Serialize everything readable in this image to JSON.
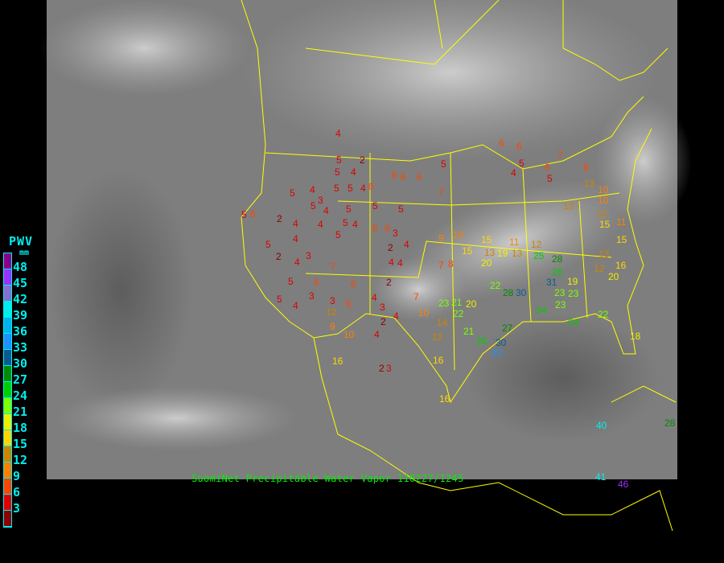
{
  "legend": {
    "title": "PWV",
    "unit": "mm",
    "labels": [
      "48",
      "45",
      "42",
      "39",
      "36",
      "33",
      "30",
      "27",
      "24",
      "21",
      "18",
      "15",
      "12",
      "9",
      "6",
      "3"
    ],
    "colors": [
      "#8b008b",
      "#9b30ff",
      "#8470d0",
      "#00eeee",
      "#00b2ee",
      "#1e90ff",
      "#0b5a8f",
      "#008b00",
      "#00cd00",
      "#7fff00",
      "#eeee00",
      "#ffd700",
      "#cd8500",
      "#ff8000",
      "#ff4500",
      "#dd0000",
      "#8b0000"
    ]
  },
  "caption": "SuomiNet Precipitable Water Vapor 110227/1245",
  "map_colors": {
    "borders": "#ffff00",
    "background": "#000000"
  },
  "stations": [
    "4",
    "5",
    "2",
    "5",
    "4",
    "6",
    "6",
    "6",
    "7",
    "5",
    "4",
    "5",
    "5",
    "4",
    "6",
    "2",
    "5",
    "5",
    "4",
    "5",
    "5",
    "6",
    "5",
    "5",
    "4",
    "3",
    "4",
    "5",
    "5",
    "4",
    "6",
    "3",
    "2",
    "4",
    "4",
    "4",
    "5",
    "4",
    "2",
    "3",
    "3",
    "4",
    "2",
    "5",
    "5",
    "6",
    "7",
    "6",
    "4",
    "3",
    "2",
    "2",
    "4",
    "4",
    "3",
    "6",
    "12",
    "9",
    "10",
    "4",
    "6",
    "7",
    "7",
    "8",
    "9",
    "10",
    "15",
    "13",
    "11",
    "15",
    "20",
    "19",
    "13",
    "12",
    "25",
    "28",
    "26",
    "31",
    "23",
    "23",
    "19",
    "23",
    "30",
    "28",
    "22",
    "21",
    "23",
    "22",
    "20",
    "10",
    "14",
    "12",
    "21",
    "26",
    "30",
    "33",
    "27",
    "24",
    "24",
    "16",
    "13",
    "12",
    "15",
    "11",
    "13",
    "12",
    "16",
    "15",
    "20",
    "22",
    "18",
    "6",
    "6",
    "5",
    "7",
    "8",
    "6",
    "5",
    "4",
    "13",
    "10",
    "10",
    "3",
    "16",
    "16",
    "40",
    "41",
    "46",
    "28"
  ]
}
